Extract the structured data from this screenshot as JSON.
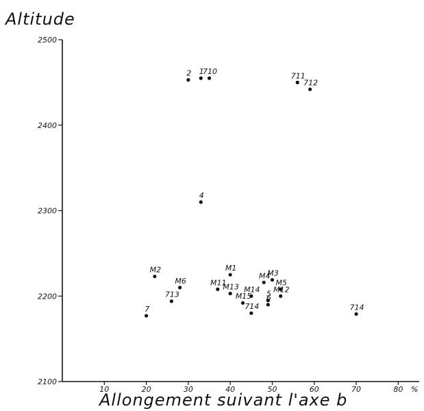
{
  "chart_data": {
    "type": "scatter",
    "title": "",
    "ylabel": "Altitude",
    "xlabel": "Allongement suivant l'axe b",
    "x_unit": "%",
    "xlim": [
      0,
      85
    ],
    "ylim": [
      2100,
      2500
    ],
    "x_ticks": [
      10,
      20,
      30,
      40,
      50,
      60,
      70,
      80
    ],
    "y_ticks": [
      2100,
      2200,
      2300,
      2400,
      2500
    ],
    "grid": false,
    "points": [
      {
        "label": "1",
        "x": 33,
        "y": 2455
      },
      {
        "label": "2",
        "x": 30,
        "y": 2453
      },
      {
        "label": "710",
        "x": 35,
        "y": 2455
      },
      {
        "label": "711",
        "x": 56,
        "y": 2450
      },
      {
        "label": "712",
        "x": 59,
        "y": 2442
      },
      {
        "label": "4",
        "x": 33,
        "y": 2310
      },
      {
        "label": "M2",
        "x": 22,
        "y": 2223
      },
      {
        "label": "M6",
        "x": 28,
        "y": 2210
      },
      {
        "label": "713",
        "x": 26,
        "y": 2194
      },
      {
        "label": "7",
        "x": 20,
        "y": 2177
      },
      {
        "label": "M1",
        "x": 40,
        "y": 2225
      },
      {
        "label": "M11",
        "x": 37,
        "y": 2208
      },
      {
        "label": "M13",
        "x": 40,
        "y": 2203
      },
      {
        "label": "M14",
        "x": 45,
        "y": 2200
      },
      {
        "label": "M15",
        "x": 43,
        "y": 2192
      },
      {
        "label": "714",
        "x": 45,
        "y": 2180
      },
      {
        "label": "M4",
        "x": 48,
        "y": 2216
      },
      {
        "label": "M3",
        "x": 50,
        "y": 2219
      },
      {
        "label": "M5",
        "x": 52,
        "y": 2208
      },
      {
        "label": "5",
        "x": 49,
        "y": 2195
      },
      {
        "label": "6",
        "x": 49,
        "y": 2190
      },
      {
        "label": "M12",
        "x": 52,
        "y": 2200
      },
      {
        "label": "714",
        "x": 70,
        "y": 2179
      }
    ]
  }
}
